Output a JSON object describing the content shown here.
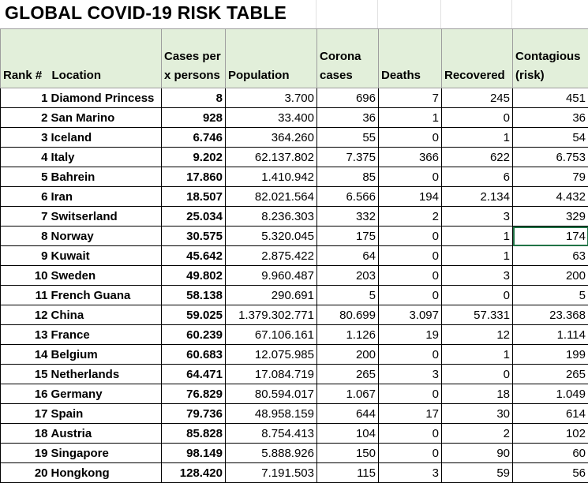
{
  "title": "GLOBAL COVID-19 RISK TABLE",
  "headers": {
    "rank": "Rank #",
    "location": "Location",
    "cases_per_line1": "Cases per",
    "cases_per_line2": "x persons",
    "population": "Population",
    "corona_line1": "Corona",
    "corona_line2": "cases",
    "deaths": "Deaths",
    "recovered": "Recovered",
    "contagious_line1": "Contagious",
    "contagious_line2": "(risk)"
  },
  "rows": [
    {
      "rank": "1",
      "location": "Diamond Princess",
      "cases_per": "8",
      "population": "3.700",
      "corona": "696",
      "deaths": "7",
      "recovered": "245",
      "contagious": "451"
    },
    {
      "rank": "2",
      "location": "San Marino",
      "cases_per": "928",
      "population": "33.400",
      "corona": "36",
      "deaths": "1",
      "recovered": "0",
      "contagious": "36"
    },
    {
      "rank": "3",
      "location": "Iceland",
      "cases_per": "6.746",
      "population": "364.260",
      "corona": "55",
      "deaths": "0",
      "recovered": "1",
      "contagious": "54"
    },
    {
      "rank": "4",
      "location": "Italy",
      "cases_per": "9.202",
      "population": "62.137.802",
      "corona": "7.375",
      "deaths": "366",
      "recovered": "622",
      "contagious": "6.753"
    },
    {
      "rank": "5",
      "location": "Bahrein",
      "cases_per": "17.860",
      "population": "1.410.942",
      "corona": "85",
      "deaths": "0",
      "recovered": "6",
      "contagious": "79"
    },
    {
      "rank": "6",
      "location": "Iran",
      "cases_per": "18.507",
      "population": "82.021.564",
      "corona": "6.566",
      "deaths": "194",
      "recovered": "2.134",
      "contagious": "4.432"
    },
    {
      "rank": "7",
      "location": "Switserland",
      "cases_per": "25.034",
      "population": "8.236.303",
      "corona": "332",
      "deaths": "2",
      "recovered": "3",
      "contagious": "329"
    },
    {
      "rank": "8",
      "location": "Norway",
      "cases_per": "30.575",
      "population": "5.320.045",
      "corona": "175",
      "deaths": "0",
      "recovered": "1",
      "contagious": "174"
    },
    {
      "rank": "9",
      "location": "Kuwait",
      "cases_per": "45.642",
      "population": "2.875.422",
      "corona": "64",
      "deaths": "0",
      "recovered": "1",
      "contagious": "63"
    },
    {
      "rank": "10",
      "location": "Sweden",
      "cases_per": "49.802",
      "population": "9.960.487",
      "corona": "203",
      "deaths": "0",
      "recovered": "3",
      "contagious": "200"
    },
    {
      "rank": "11",
      "location": "French Guana",
      "cases_per": "58.138",
      "population": "290.691",
      "corona": "5",
      "deaths": "0",
      "recovered": "0",
      "contagious": "5"
    },
    {
      "rank": "12",
      "location": "China",
      "cases_per": "59.025",
      "population": "1.379.302.771",
      "corona": "80.699",
      "deaths": "3.097",
      "recovered": "57.331",
      "contagious": "23.368"
    },
    {
      "rank": "13",
      "location": "France",
      "cases_per": "60.239",
      "population": "67.106.161",
      "corona": "1.126",
      "deaths": "19",
      "recovered": "12",
      "contagious": "1.114"
    },
    {
      "rank": "14",
      "location": "Belgium",
      "cases_per": "60.683",
      "population": "12.075.985",
      "corona": "200",
      "deaths": "0",
      "recovered": "1",
      "contagious": "199"
    },
    {
      "rank": "15",
      "location": "Netherlands",
      "cases_per": "64.471",
      "population": "17.084.719",
      "corona": "265",
      "deaths": "3",
      "recovered": "0",
      "contagious": "265"
    },
    {
      "rank": "16",
      "location": "Germany",
      "cases_per": "76.829",
      "population": "80.594.017",
      "corona": "1.067",
      "deaths": "0",
      "recovered": "18",
      "contagious": "1.049"
    },
    {
      "rank": "17",
      "location": "Spain",
      "cases_per": "79.736",
      "population": "48.958.159",
      "corona": "644",
      "deaths": "17",
      "recovered": "30",
      "contagious": "614"
    },
    {
      "rank": "18",
      "location": "Austria",
      "cases_per": "85.828",
      "population": "8.754.413",
      "corona": "104",
      "deaths": "0",
      "recovered": "2",
      "contagious": "102"
    },
    {
      "rank": "19",
      "location": "Singapore",
      "cases_per": "98.149",
      "population": "5.888.926",
      "corona": "150",
      "deaths": "0",
      "recovered": "90",
      "contagious": "60"
    },
    {
      "rank": "20",
      "location": "Hongkong",
      "cases_per": "128.420",
      "population": "7.191.503",
      "corona": "115",
      "deaths": "3",
      "recovered": "59",
      "contagious": "56"
    }
  ],
  "colors": {
    "header_fill": "#e2efda",
    "selection": "#217346"
  }
}
